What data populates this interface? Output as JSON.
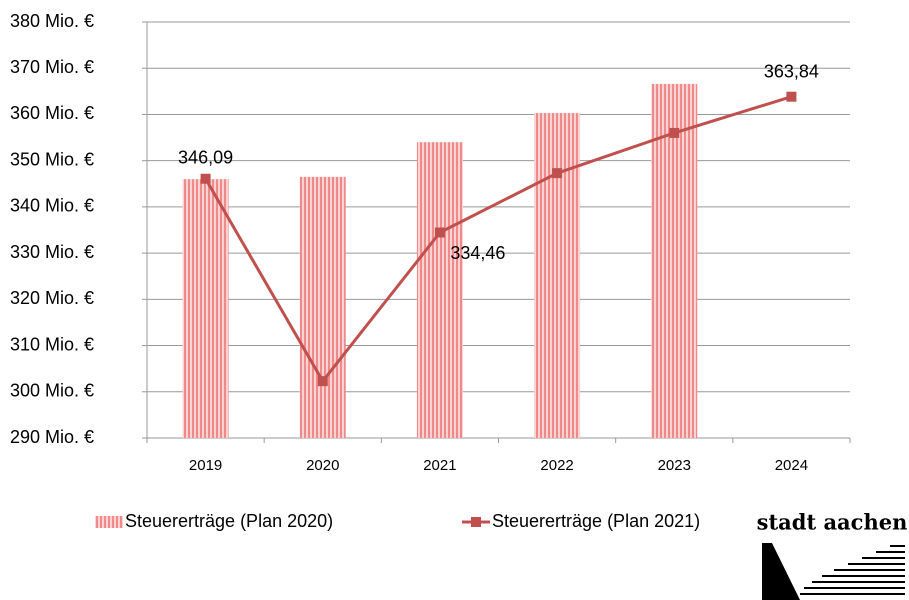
{
  "logo": "stadt aachen",
  "chart_data": {
    "type": "combo",
    "categories": [
      "2019",
      "2020",
      "2021",
      "2022",
      "2023",
      "2024"
    ],
    "series": [
      {
        "name": "Steuererträge (Plan 2020)",
        "type": "bar",
        "color": "#f08a8a",
        "values": [
          346,
          346.5,
          354,
          360.3,
          366.6,
          null
        ]
      },
      {
        "name": "Steuererträge (Plan 2021)",
        "type": "line",
        "color": "#c0504d",
        "values": [
          346.09,
          302.3,
          334.46,
          347.3,
          356,
          363.84
        ],
        "value_labels": [
          "346,09",
          null,
          "334,46",
          null,
          null,
          "363,84"
        ]
      }
    ],
    "ylim": [
      290,
      380
    ],
    "yticks": [
      {
        "value": 290,
        "label": "290  Mio. €"
      },
      {
        "value": 300,
        "label": "300  Mio. €"
      },
      {
        "value": 310,
        "label": "310  Mio. €"
      },
      {
        "value": 320,
        "label": "320  Mio. €"
      },
      {
        "value": 330,
        "label": "330  Mio. €"
      },
      {
        "value": 340,
        "label": "340  Mio. €"
      },
      {
        "value": 350,
        "label": "350  Mio. €"
      },
      {
        "value": 360,
        "label": "360  Mio. €"
      },
      {
        "value": 370,
        "label": "370  Mio. €"
      },
      {
        "value": 380,
        "label": "380  Mio. €"
      }
    ],
    "grid": true
  }
}
